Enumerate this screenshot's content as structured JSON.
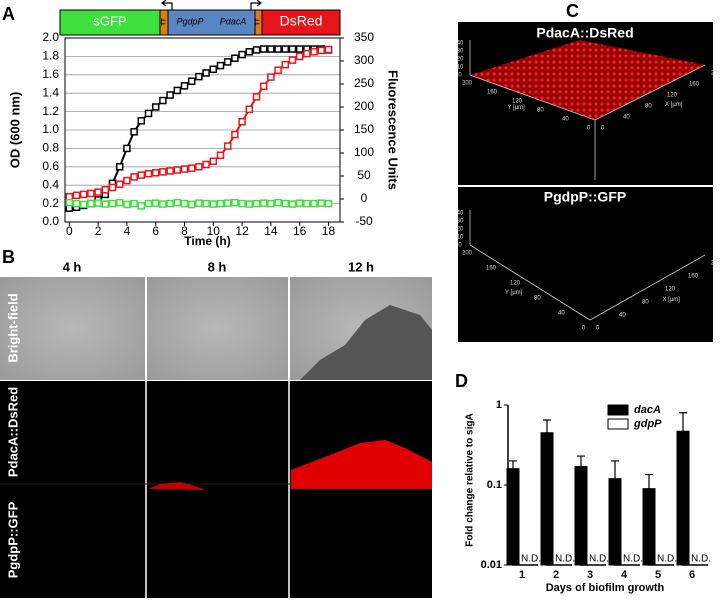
{
  "panel_labels": [
    "A",
    "B",
    "C",
    "D"
  ],
  "gene_map": {
    "segments": [
      "sGFP",
      "TT",
      "PgdpP",
      "PdacA",
      "TT",
      "DsRed"
    ]
  },
  "chart_data": [
    {
      "type": "line",
      "x_label": "Time (h)",
      "y_label": "OD (600 nm)",
      "y2_label": "Fluorescence Units",
      "x": [
        0,
        0.5,
        1,
        1.5,
        2,
        2.5,
        3,
        3.5,
        4,
        4.5,
        5,
        5.5,
        6,
        6.5,
        7,
        7.5,
        8,
        8.5,
        9,
        9.5,
        10,
        10.5,
        11,
        11.5,
        12,
        12.5,
        13,
        13.5,
        14,
        14.5,
        15,
        15.5,
        16,
        16.5,
        17,
        17.5,
        18
      ],
      "xlim": [
        -0.3,
        18.8
      ],
      "xticks": [
        0,
        2,
        4,
        6,
        8,
        10,
        12,
        14,
        16,
        18
      ],
      "ylim": [
        0,
        2
      ],
      "yticks": [
        {
          "value": 0,
          "label": "0.0"
        },
        0.2,
        0.4,
        0.6,
        0.8,
        {
          "value": 1,
          "label": "1.0"
        },
        1.2,
        1.4,
        1.6,
        1.8,
        {
          "value": 2,
          "label": "2.0"
        }
      ],
      "y2lim": [
        -50,
        350
      ],
      "y2ticks": [
        -50,
        0,
        50,
        100,
        150,
        200,
        250,
        300,
        350
      ],
      "grid": true,
      "series": [
        {
          "name": "OD",
          "color": "#000000",
          "values": [
            0.15,
            0.16,
            0.18,
            0.2,
            0.24,
            0.3,
            0.42,
            0.6,
            0.8,
            0.98,
            1.1,
            1.18,
            1.25,
            1.32,
            1.38,
            1.43,
            1.48,
            1.53,
            1.58,
            1.62,
            1.66,
            1.7,
            1.74,
            1.78,
            1.82,
            1.85,
            1.87,
            1.88,
            1.88,
            1.88,
            1.88,
            1.88,
            1.88,
            1.88,
            1.88,
            1.88,
            1.87
          ]
        },
        {
          "name": "DsRed",
          "color": "#e8141c",
          "axis": "y2",
          "values": [
            5,
            8,
            10,
            12,
            15,
            20,
            25,
            32,
            40,
            48,
            52,
            55,
            57,
            59,
            61,
            63,
            65,
            67,
            70,
            75,
            82,
            95,
            115,
            140,
            168,
            195,
            222,
            245,
            265,
            280,
            292,
            302,
            310,
            316,
            320,
            323,
            325
          ]
        },
        {
          "name": "GFP",
          "color": "#3ee03e",
          "axis": "y2",
          "values": [
            -8,
            -10,
            -12,
            -10,
            -9,
            -11,
            -10,
            -8,
            -12,
            -10,
            -15,
            -10,
            -9,
            -11,
            -10,
            -8,
            -10,
            -12,
            -9,
            -10,
            -11,
            -10,
            -9,
            -8,
            -10,
            -11,
            -10,
            -9,
            -10,
            -8,
            -10,
            -11,
            -9,
            -10,
            -10,
            -9,
            -10
          ]
        }
      ]
    },
    {
      "type": "bar",
      "y_label": "Fold change relative to sigA",
      "x_label": "Days of biofilm growth",
      "categories": [
        "1",
        "2",
        "3",
        "4",
        "5",
        "6"
      ],
      "log_scale": true,
      "ylim": [
        0.01,
        1
      ],
      "yticks": [
        0.01,
        0.1,
        1
      ],
      "legend": "top-right",
      "series": [
        {
          "name": "dacA",
          "color": "#000000",
          "values": [
            0.16,
            0.45,
            0.17,
            0.12,
            0.09,
            0.47
          ],
          "errors": [
            0.04,
            0.2,
            0.06,
            0.08,
            0.045,
            0.33
          ]
        },
        {
          "name": "gdpP",
          "color": "#ffffff",
          "values": [
            null,
            null,
            null,
            null,
            null,
            null
          ],
          "value_labels": [
            "N.D.",
            "N.D.",
            "N.D.",
            "N.D.",
            "N.D.",
            "N.D."
          ]
        }
      ]
    }
  ],
  "microscopy": {
    "columns": [
      "4 h",
      "8 h",
      "12 h"
    ],
    "rows": [
      "Bright-field",
      "PdacA::DsRed",
      "PgdpP::GFP"
    ]
  },
  "confocal": {
    "titles": [
      "PdacA::DsRed",
      "PgdpP::GFP"
    ],
    "x_axis": "X [µm]",
    "y_axis": "Y [µm]",
    "xy_ticks": [
      "0",
      "40",
      "80",
      "120",
      "160",
      "200"
    ],
    "z_ticks": [
      "0",
      "10",
      "20",
      "30",
      "40"
    ]
  }
}
